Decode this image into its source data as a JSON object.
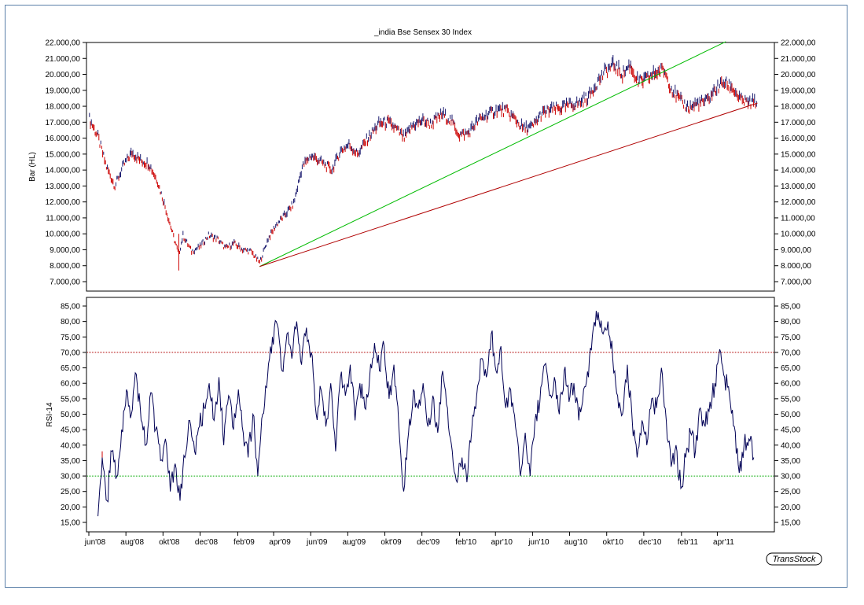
{
  "chart_data": [
    {
      "type": "bar",
      "title": "_india Bse Sensex 30 Index",
      "ylabel": "Bar (HL)",
      "ylim": [
        7000,
        22000
      ],
      "yticks": [
        "7.000,00",
        "8.000,00",
        "9.000,00",
        "10.000,00",
        "11.000,00",
        "12.000,00",
        "13.000,00",
        "14.000,00",
        "15.000,00",
        "16.000,00",
        "17.000,00",
        "18.000,00",
        "19.000,00",
        "20.000,00",
        "21.000,00",
        "22.000,00"
      ],
      "ytick_values": [
        7000,
        8000,
        9000,
        10000,
        11000,
        12000,
        13000,
        14000,
        15000,
        16000,
        17000,
        18000,
        19000,
        20000,
        21000,
        22000
      ],
      "x_range": [
        "2008-06-01",
        "2011-06-08"
      ],
      "series": [
        {
          "style": "hl-bars",
          "points": [
            [
              "2008-06-02",
              17200
            ],
            [
              "2008-06-16",
              16100
            ],
            [
              "2008-06-30",
              14200
            ],
            [
              "2008-07-14",
              13000
            ],
            [
              "2008-07-28",
              14300
            ],
            [
              "2008-08-11",
              15100
            ],
            [
              "2008-08-25",
              14600
            ],
            [
              "2008-09-08",
              14400
            ],
            [
              "2008-09-22",
              13300
            ],
            [
              "2008-10-06",
              11500
            ],
            [
              "2008-10-20",
              9600
            ],
            [
              "2008-10-27",
              8700
            ],
            [
              "2008-11-03",
              9900
            ],
            [
              "2008-11-17",
              8900
            ],
            [
              "2008-12-01",
              9200
            ],
            [
              "2008-12-15",
              9900
            ],
            [
              "2008-12-29",
              9700
            ],
            [
              "2009-01-12",
              9100
            ],
            [
              "2009-01-26",
              9400
            ],
            [
              "2009-02-09",
              9000
            ],
            [
              "2009-02-23",
              8900
            ],
            [
              "2009-03-09",
              8200
            ],
            [
              "2009-03-23",
              9700
            ],
            [
              "2009-04-06",
              10600
            ],
            [
              "2009-04-20",
              11200
            ],
            [
              "2009-05-04",
              11900
            ],
            [
              "2009-05-18",
              14200
            ],
            [
              "2009-06-01",
              14900
            ],
            [
              "2009-06-15",
              14600
            ],
            [
              "2009-07-06",
              14000
            ],
            [
              "2009-07-20",
              15200
            ],
            [
              "2009-08-03",
              15600
            ],
            [
              "2009-08-17",
              15000
            ],
            [
              "2009-09-07",
              16200
            ],
            [
              "2009-09-21",
              16900
            ],
            [
              "2009-10-05",
              17000
            ],
            [
              "2009-10-19",
              16600
            ],
            [
              "2009-11-02",
              16000
            ],
            [
              "2009-11-16",
              16800
            ],
            [
              "2009-12-01",
              17100
            ],
            [
              "2009-12-15",
              16900
            ],
            [
              "2010-01-04",
              17500
            ],
            [
              "2010-01-18",
              17100
            ],
            [
              "2010-02-01",
              16200
            ],
            [
              "2010-02-15",
              16300
            ],
            [
              "2010-03-01",
              17000
            ],
            [
              "2010-03-15",
              17400
            ],
            [
              "2010-04-05",
              17800
            ],
            [
              "2010-04-19",
              17700
            ],
            [
              "2010-05-03",
              17200
            ],
            [
              "2010-05-17",
              16600
            ],
            [
              "2010-06-01",
              16700
            ],
            [
              "2010-06-15",
              17500
            ],
            [
              "2010-07-01",
              17800
            ],
            [
              "2010-07-19",
              17900
            ],
            [
              "2010-08-02",
              18100
            ],
            [
              "2010-08-16",
              18200
            ],
            [
              "2010-09-01",
              18600
            ],
            [
              "2010-09-15",
              19500
            ],
            [
              "2010-09-29",
              20200
            ],
            [
              "2010-10-13",
              20600
            ],
            [
              "2010-10-27",
              20000
            ],
            [
              "2010-11-08",
              20600
            ],
            [
              "2010-11-22",
              19500
            ],
            [
              "2010-12-06",
              19700
            ],
            [
              "2010-12-20",
              20100
            ],
            [
              "2011-01-03",
              20300
            ],
            [
              "2011-01-17",
              19000
            ],
            [
              "2011-01-31",
              18300
            ],
            [
              "2011-02-14",
              17900
            ],
            [
              "2011-02-28",
              18200
            ],
            [
              "2011-03-14",
              18300
            ],
            [
              "2011-03-28",
              19000
            ],
            [
              "2011-04-11",
              19500
            ],
            [
              "2011-04-25",
              19200
            ],
            [
              "2011-05-09",
              18400
            ],
            [
              "2011-05-23",
              18200
            ],
            [
              "2011-06-06",
              18300
            ]
          ]
        }
      ],
      "trendlines": [
        {
          "color": "#00bb00",
          "from": [
            "2009-03-09",
            7950
          ],
          "to": [
            "2011-04-15",
            22050
          ]
        },
        {
          "color": "#b00000",
          "from": [
            "2009-03-09",
            7950
          ],
          "to": [
            "2011-06-06",
            18200
          ]
        }
      ],
      "bar_colors": {
        "up": "#1a1a6e",
        "down": "#cc0000"
      }
    },
    {
      "type": "line",
      "ylabel": "RSI-14",
      "ylim": [
        12.5,
        87.5
      ],
      "yticks": [
        "15,00",
        "20,00",
        "25,00",
        "30,00",
        "35,00",
        "40,00",
        "45,00",
        "50,00",
        "55,00",
        "60,00",
        "65,00",
        "70,00",
        "75,00",
        "80,00",
        "85,00"
      ],
      "ytick_values": [
        15,
        20,
        25,
        30,
        35,
        40,
        45,
        50,
        55,
        60,
        65,
        70,
        75,
        80,
        85
      ],
      "x_range": [
        "2008-06-01",
        "2011-06-08"
      ],
      "reference_lines": [
        {
          "value": 70,
          "color": "#b00000"
        },
        {
          "value": 30,
          "color": "#00aa00"
        }
      ],
      "series": [
        {
          "color": "#000055",
          "points": [
            [
              "2008-06-16",
              17
            ],
            [
              "2008-06-23",
              36
            ],
            [
              "2008-07-01",
              22
            ],
            [
              "2008-07-09",
              38
            ],
            [
              "2008-07-17",
              30
            ],
            [
              "2008-07-25",
              45
            ],
            [
              "2008-08-02",
              58
            ],
            [
              "2008-08-10",
              50
            ],
            [
              "2008-08-18",
              63
            ],
            [
              "2008-08-26",
              48
            ],
            [
              "2008-09-03",
              40
            ],
            [
              "2008-09-11",
              57
            ],
            [
              "2008-09-19",
              45
            ],
            [
              "2008-09-27",
              35
            ],
            [
              "2008-10-05",
              42
            ],
            [
              "2008-10-13",
              25
            ],
            [
              "2008-10-21",
              34
            ],
            [
              "2008-10-29",
              22
            ],
            [
              "2008-11-06",
              36
            ],
            [
              "2008-11-14",
              48
            ],
            [
              "2008-11-22",
              38
            ],
            [
              "2008-11-30",
              46
            ],
            [
              "2008-12-08",
              52
            ],
            [
              "2008-12-16",
              60
            ],
            [
              "2008-12-24",
              48
            ],
            [
              "2009-01-01",
              62
            ],
            [
              "2009-01-09",
              40
            ],
            [
              "2009-01-17",
              56
            ],
            [
              "2009-01-25",
              45
            ],
            [
              "2009-02-02",
              58
            ],
            [
              "2009-02-10",
              44
            ],
            [
              "2009-02-18",
              36
            ],
            [
              "2009-02-26",
              50
            ],
            [
              "2009-03-06",
              30
            ],
            [
              "2009-03-14",
              50
            ],
            [
              "2009-03-22",
              62
            ],
            [
              "2009-03-30",
              75
            ],
            [
              "2009-04-07",
              79
            ],
            [
              "2009-04-15",
              64
            ],
            [
              "2009-04-23",
              76
            ],
            [
              "2009-05-01",
              68
            ],
            [
              "2009-05-09",
              80
            ],
            [
              "2009-05-17",
              66
            ],
            [
              "2009-05-25",
              78
            ],
            [
              "2009-06-02",
              70
            ],
            [
              "2009-06-10",
              50
            ],
            [
              "2009-06-18",
              58
            ],
            [
              "2009-06-26",
              46
            ],
            [
              "2009-07-04",
              60
            ],
            [
              "2009-07-12",
              38
            ],
            [
              "2009-07-20",
              62
            ],
            [
              "2009-07-28",
              56
            ],
            [
              "2009-08-05",
              66
            ],
            [
              "2009-08-13",
              48
            ],
            [
              "2009-08-21",
              60
            ],
            [
              "2009-08-29",
              52
            ],
            [
              "2009-09-06",
              62
            ],
            [
              "2009-09-14",
              73
            ],
            [
              "2009-09-22",
              64
            ],
            [
              "2009-09-30",
              72
            ],
            [
              "2009-10-08",
              55
            ],
            [
              "2009-10-16",
              66
            ],
            [
              "2009-10-24",
              46
            ],
            [
              "2009-11-01",
              25
            ],
            [
              "2009-11-09",
              44
            ],
            [
              "2009-11-17",
              58
            ],
            [
              "2009-11-25",
              52
            ],
            [
              "2009-12-03",
              60
            ],
            [
              "2009-12-11",
              46
            ],
            [
              "2009-12-19",
              56
            ],
            [
              "2009-12-27",
              44
            ],
            [
              "2010-01-04",
              64
            ],
            [
              "2010-01-12",
              52
            ],
            [
              "2010-01-20",
              38
            ],
            [
              "2010-01-28",
              28
            ],
            [
              "2010-02-05",
              36
            ],
            [
              "2010-02-13",
              28
            ],
            [
              "2010-02-21",
              45
            ],
            [
              "2010-03-01",
              56
            ],
            [
              "2010-03-09",
              68
            ],
            [
              "2010-03-17",
              62
            ],
            [
              "2010-03-25",
              76
            ],
            [
              "2010-04-02",
              64
            ],
            [
              "2010-04-10",
              72
            ],
            [
              "2010-04-18",
              52
            ],
            [
              "2010-04-26",
              58
            ],
            [
              "2010-05-04",
              46
            ],
            [
              "2010-05-12",
              30
            ],
            [
              "2010-05-20",
              44
            ],
            [
              "2010-05-28",
              30
            ],
            [
              "2010-06-05",
              48
            ],
            [
              "2010-06-13",
              54
            ],
            [
              "2010-06-21",
              66
            ],
            [
              "2010-06-29",
              56
            ],
            [
              "2010-07-07",
              62
            ],
            [
              "2010-07-15",
              50
            ],
            [
              "2010-07-23",
              64
            ],
            [
              "2010-07-31",
              54
            ],
            [
              "2010-08-08",
              60
            ],
            [
              "2010-08-16",
              48
            ],
            [
              "2010-08-24",
              58
            ],
            [
              "2010-09-01",
              62
            ],
            [
              "2010-09-09",
              78
            ],
            [
              "2010-09-17",
              83
            ],
            [
              "2010-09-25",
              76
            ],
            [
              "2010-10-03",
              80
            ],
            [
              "2010-10-11",
              68
            ],
            [
              "2010-10-19",
              56
            ],
            [
              "2010-10-27",
              50
            ],
            [
              "2010-11-04",
              66
            ],
            [
              "2010-11-12",
              48
            ],
            [
              "2010-11-20",
              36
            ],
            [
              "2010-11-28",
              48
            ],
            [
              "2010-12-06",
              40
            ],
            [
              "2010-12-14",
              55
            ],
            [
              "2010-12-22",
              52
            ],
            [
              "2010-12-30",
              65
            ],
            [
              "2011-01-07",
              48
            ],
            [
              "2011-01-15",
              33
            ],
            [
              "2011-01-23",
              40
            ],
            [
              "2011-01-31",
              26
            ],
            [
              "2011-02-08",
              36
            ],
            [
              "2011-02-16",
              44
            ],
            [
              "2011-02-24",
              38
            ],
            [
              "2011-03-04",
              52
            ],
            [
              "2011-03-12",
              46
            ],
            [
              "2011-03-20",
              54
            ],
            [
              "2011-03-28",
              60
            ],
            [
              "2011-04-05",
              71
            ],
            [
              "2011-04-13",
              62
            ],
            [
              "2011-04-21",
              56
            ],
            [
              "2011-04-29",
              46
            ],
            [
              "2011-05-07",
              31
            ],
            [
              "2011-05-15",
              40
            ],
            [
              "2011-05-23",
              42
            ],
            [
              "2011-05-31",
              36
            ]
          ]
        }
      ]
    }
  ],
  "x_axis": {
    "ticks": [
      {
        "label": "jun'08",
        "date": "2008-06-01"
      },
      {
        "label": "aug'08",
        "date": "2008-08-01"
      },
      {
        "label": "okt'08",
        "date": "2008-10-01"
      },
      {
        "label": "dec'08",
        "date": "2008-12-01"
      },
      {
        "label": "feb'09",
        "date": "2009-02-01"
      },
      {
        "label": "apr'09",
        "date": "2009-04-01"
      },
      {
        "label": "jun'09",
        "date": "2009-06-01"
      },
      {
        "label": "aug'09",
        "date": "2009-08-01"
      },
      {
        "label": "okt'09",
        "date": "2009-10-01"
      },
      {
        "label": "dec'09",
        "date": "2009-12-01"
      },
      {
        "label": "feb'10",
        "date": "2010-02-01"
      },
      {
        "label": "apr'10",
        "date": "2010-04-01"
      },
      {
        "label": "jun'10",
        "date": "2010-06-01"
      },
      {
        "label": "aug'10",
        "date": "2010-08-01"
      },
      {
        "label": "okt'10",
        "date": "2010-10-01"
      },
      {
        "label": "dec'10",
        "date": "2010-12-01"
      },
      {
        "label": "feb'11",
        "date": "2011-02-01"
      },
      {
        "label": "apr'11",
        "date": "2011-04-01"
      }
    ]
  },
  "branding": {
    "label": "TransStock"
  }
}
